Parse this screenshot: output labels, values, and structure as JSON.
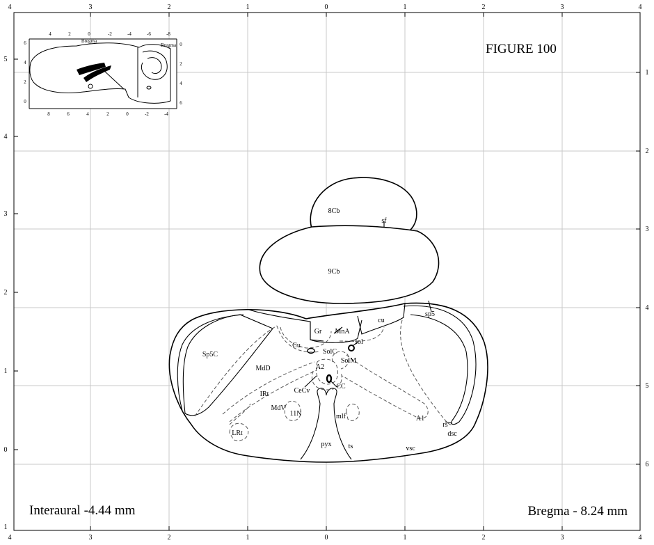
{
  "figure_title": "FIGURE 100",
  "interaural": "Interaural -4.44 mm",
  "bregma": "Bregma - 8.24 mm",
  "axes": {
    "top": [
      "4",
      "3",
      "2",
      "1",
      "0",
      "1",
      "2",
      "3",
      "4"
    ],
    "bottom": [
      "4",
      "3",
      "2",
      "1",
      "0",
      "1",
      "2",
      "3",
      "4"
    ],
    "left": [
      "5",
      "4",
      "3",
      "2",
      "1",
      "0",
      "1"
    ],
    "right": [
      "1",
      "2",
      "3",
      "4",
      "5",
      "6"
    ]
  },
  "inset": {
    "top_ticks": [
      "4",
      "2",
      "0",
      "-2",
      "-4",
      "-6",
      "-8"
    ],
    "bottom_ticks": [
      "8",
      "6",
      "4",
      "2",
      "0",
      "-2",
      "-4"
    ],
    "left_ticks": [
      "6",
      "4",
      "2",
      "0"
    ],
    "right_ticks": [
      "0",
      "2",
      "4",
      "6"
    ],
    "bregma_top": "Bregma",
    "bregma_right": "Bregma"
  },
  "labels": {
    "cb8": "8Cb",
    "sf": "sf",
    "cb9": "9Cb",
    "sp5": "sp5",
    "cu_upper": "cu",
    "gr": "Gr",
    "mna": "MnA",
    "sol": "sol",
    "sp5c": "Sp5C",
    "cu_nucleus": "Cu",
    "solc": "SolC",
    "solm": "SolM",
    "mdd": "MdD",
    "a2": "A2",
    "cecv": "CeCv",
    "cc": "CC",
    "irt": "IRt",
    "mdv": "MdV",
    "n11": "11N",
    "mlf": "mlf",
    "a1": "A1",
    "rs": "rs",
    "dsc": "dsc",
    "lrt": "LRt",
    "pyx": "pyx",
    "ts": "ts",
    "vsc": "vsc"
  }
}
